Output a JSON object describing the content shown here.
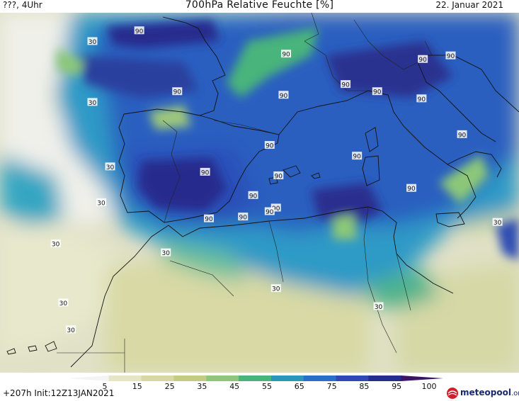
{
  "header": {
    "left": "???, 4Uhr",
    "title": "700hPa Relative Feuchte [%]",
    "date": "22. Januar 2021"
  },
  "footer": {
    "run": "+207h  Init:12Z13JAN2021",
    "logo_name": "meteopool",
    "logo_suffix": ".org"
  },
  "legend": {
    "ticks": [
      "5",
      "15",
      "25",
      "35",
      "45",
      "55",
      "65",
      "75",
      "85",
      "95",
      "100"
    ],
    "colors": [
      "#f4f4f4",
      "#e6e6c4",
      "#d8d8a0",
      "#c4cc84",
      "#8cc878",
      "#48b47c",
      "#2c96b8",
      "#2a6ec8",
      "#2c4ab4",
      "#262c8c",
      "#3c1466"
    ]
  },
  "contour_labels": [
    {
      "text": "90",
      "lon": -9.0,
      "lat": 46.6
    },
    {
      "text": "90",
      "lon": 2.6,
      "lat": 45.3
    },
    {
      "text": "90",
      "lon": 13.4,
      "lat": 45.0
    },
    {
      "text": "90",
      "lon": 15.6,
      "lat": 45.2
    },
    {
      "text": "90",
      "lon": 13.3,
      "lat": 42.8
    },
    {
      "text": "90",
      "lon": -6.0,
      "lat": 43.2
    },
    {
      "text": "90",
      "lon": 2.4,
      "lat": 43.0
    },
    {
      "text": "90",
      "lon": 7.3,
      "lat": 43.6
    },
    {
      "text": "90",
      "lon": 9.8,
      "lat": 43.2
    },
    {
      "text": "90",
      "lon": 1.3,
      "lat": 40.2
    },
    {
      "text": "90",
      "lon": 8.2,
      "lat": 39.6
    },
    {
      "text": "90",
      "lon": -3.8,
      "lat": 38.7
    },
    {
      "text": "90",
      "lon": 2.0,
      "lat": 38.5
    },
    {
      "text": "90",
      "lon": 16.5,
      "lat": 40.8
    },
    {
      "text": "90",
      "lon": 0.0,
      "lat": 37.4
    },
    {
      "text": "90",
      "lon": 12.5,
      "lat": 37.8
    },
    {
      "text": "90",
      "lon": 1.8,
      "lat": 36.7
    },
    {
      "text": "90",
      "lon": 1.3,
      "lat": 36.5
    },
    {
      "text": "90",
      "lon": -0.8,
      "lat": 36.2
    },
    {
      "text": "90",
      "lon": -3.5,
      "lat": 36.1
    },
    {
      "text": "30",
      "lon": -12.7,
      "lat": 46.0
    },
    {
      "text": "30",
      "lon": -12.7,
      "lat": 42.6
    },
    {
      "text": "30",
      "lon": -11.3,
      "lat": 39.0
    },
    {
      "text": "30",
      "lon": -12.0,
      "lat": 37.0
    },
    {
      "text": "30",
      "lon": -15.6,
      "lat": 34.7
    },
    {
      "text": "30",
      "lon": -6.9,
      "lat": 34.2
    },
    {
      "text": "30",
      "lon": 1.8,
      "lat": 32.2
    },
    {
      "text": "30",
      "lon": -15.0,
      "lat": 31.4
    },
    {
      "text": "30",
      "lon": -14.4,
      "lat": 29.9
    },
    {
      "text": "30",
      "lon": 9.9,
      "lat": 31.2
    },
    {
      "text": "30",
      "lon": 19.3,
      "lat": 35.9
    }
  ]
}
